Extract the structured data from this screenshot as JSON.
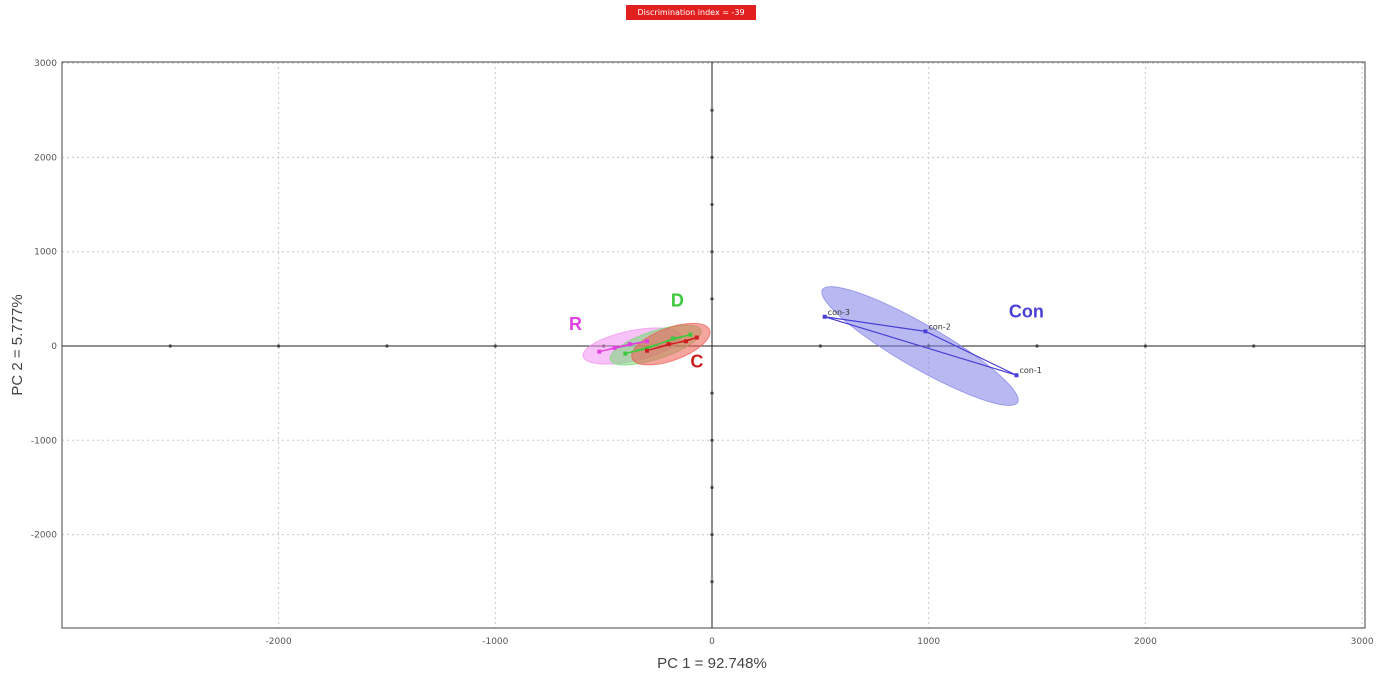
{
  "badge": {
    "text": "Discrimination index = -39"
  },
  "chart_data": {
    "type": "scatter",
    "title": "",
    "xlabel": "PC 1 = 92.748%",
    "ylabel": "PC 2 = 5.777%",
    "xlim": [
      -3000,
      3000
    ],
    "ylim": [
      -3000,
      3000
    ],
    "x_ticks": [
      -2000,
      -1000,
      0,
      1000,
      2000,
      3000
    ],
    "y_ticks": [
      3000,
      2000,
      1000,
      0,
      -1000,
      -2000
    ],
    "grid": true,
    "groups": [
      {
        "name": "Con",
        "color": "#4a3fd6",
        "fill": "#8080e8",
        "label_pos": [
          1370,
          300
        ],
        "points": [
          {
            "label": "con-3",
            "x": 520,
            "y": 310
          },
          {
            "label": "con-2",
            "x": 985,
            "y": 155
          },
          {
            "label": "con-1",
            "x": 1405,
            "y": -310
          }
        ]
      },
      {
        "name": "D",
        "color": "#3cc83c",
        "fill": "#74dc74",
        "label_pos": [
          -190,
          420
        ],
        "points": [
          {
            "label": "D",
            "x": -400,
            "y": -80
          },
          {
            "label": "D",
            "x": -300,
            "y": -30
          },
          {
            "label": "D",
            "x": -180,
            "y": 80
          },
          {
            "label": "D",
            "x": -100,
            "y": 120
          }
        ]
      },
      {
        "name": "R",
        "color": "#e040e0",
        "fill": "#f090f0",
        "label_pos": [
          -660,
          170
        ],
        "points": [
          {
            "label": "R",
            "x": -520,
            "y": -60
          },
          {
            "label": "R",
            "x": -450,
            "y": -20
          },
          {
            "label": "R",
            "x": -380,
            "y": 20
          },
          {
            "label": "R",
            "x": -300,
            "y": 50
          }
        ]
      },
      {
        "name": "C",
        "color": "#cc1f1f",
        "fill": "#ef5a4e",
        "label_pos": [
          -100,
          -230
        ],
        "points": [
          {
            "label": "C",
            "x": -300,
            "y": -50
          },
          {
            "label": "C",
            "x": -200,
            "y": 20
          },
          {
            "label": "C",
            "x": -120,
            "y": 50
          },
          {
            "label": "C",
            "x": -70,
            "y": 90
          }
        ]
      }
    ],
    "ellipses": [
      {
        "group": "Con",
        "cx": 960,
        "cy": 0,
        "rx": 520,
        "ry": 100,
        "angle_deg": 30
      },
      {
        "group": "R",
        "cx": -370,
        "cy": 0,
        "rx": 230,
        "ry": 70,
        "angle_deg": -12
      },
      {
        "group": "D",
        "cx": -260,
        "cy": 10,
        "rx": 220,
        "ry": 65,
        "angle_deg": -18
      },
      {
        "group": "C",
        "cx": -190,
        "cy": 20,
        "rx": 190,
        "ry": 75,
        "angle_deg": -20
      }
    ]
  }
}
